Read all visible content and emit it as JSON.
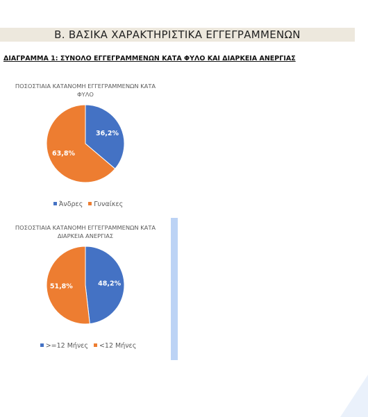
{
  "header": {
    "title": "Β.  ΒΑΣΙΚΑ ΧΑΡΑΚΤΗΡΙΣΤΙΚΑ ΕΓΓΕΓΡΑΜΜΕΝΩΝ"
  },
  "heading": "ΔΙΑΓΡΑΜΜΑ 1: ΣΥΝΟΛΟ ΕΓΓΕΓΡΑΜΜΕΝΩΝ ΚΑΤΑ ΦΥΛΟ ΚΑΙ ΔΙΑΡΚΕΙΑ ΑΝΕΡΓΙΑΣ",
  "chart_data": [
    {
      "type": "pie",
      "title": "ΠΟΣΟΣΤΙΑΙΑ ΚΑΤΑΝΟΜΗ ΕΓΓΕΓΡΑΜΜΕΝΩΝ ΚΑΤΑ ΦΥΛΟ",
      "categories": [
        "Άνδρες",
        "Γυναίκες"
      ],
      "values": [
        36.2,
        63.8
      ],
      "value_labels": [
        "36,2%",
        "63,8%"
      ],
      "colors": [
        "#4472c4",
        "#ed7d31"
      ]
    },
    {
      "type": "pie",
      "title": "ΠΟΣΟΣΤΙΑΙΑ ΚΑΤΑΝΟΜΗ ΕΓΓΕΓΡΑΜΜΕΝΩΝ ΚΑΤΑ ΔΙΑΡΚΕΙΑ ΑΝΕΡΓΙΑΣ",
      "categories": [
        ">=12 Μήνες",
        "<12 Μήνες"
      ],
      "values": [
        48.2,
        51.8
      ],
      "value_labels": [
        "48,2%",
        "51,8%"
      ],
      "colors": [
        "#4472c4",
        "#ed7d31"
      ]
    }
  ]
}
